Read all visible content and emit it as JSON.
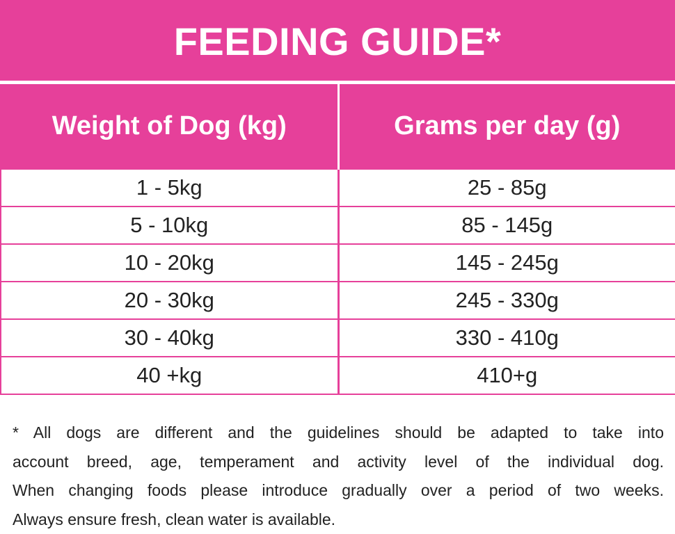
{
  "title": "FEEDING GUIDE*",
  "table": {
    "headers": [
      "Weight of Dog (kg)",
      "Grams per day (g)"
    ],
    "rows": [
      [
        "1 - 5kg",
        "25 - 85g"
      ],
      [
        "5 - 10kg",
        "85 - 145g"
      ],
      [
        "10 - 20kg",
        "145 - 245g"
      ],
      [
        "20 - 30kg",
        "245 - 330g"
      ],
      [
        "30 - 40kg",
        "330 - 410g"
      ],
      [
        "40 +kg",
        "410+g"
      ]
    ]
  },
  "footnote": {
    "lines": [
      "* All dogs are different and the guidelines should be adapted to take into",
      "account breed, age, temperament and activity level of the individual dog.",
      "When changing foods please introduce gradually over a period of two weeks.",
      "Always ensure fresh, clean water is available."
    ]
  },
  "colors": {
    "accent": "#e6409a",
    "header_text": "#ffffff",
    "body_text": "#222222"
  }
}
